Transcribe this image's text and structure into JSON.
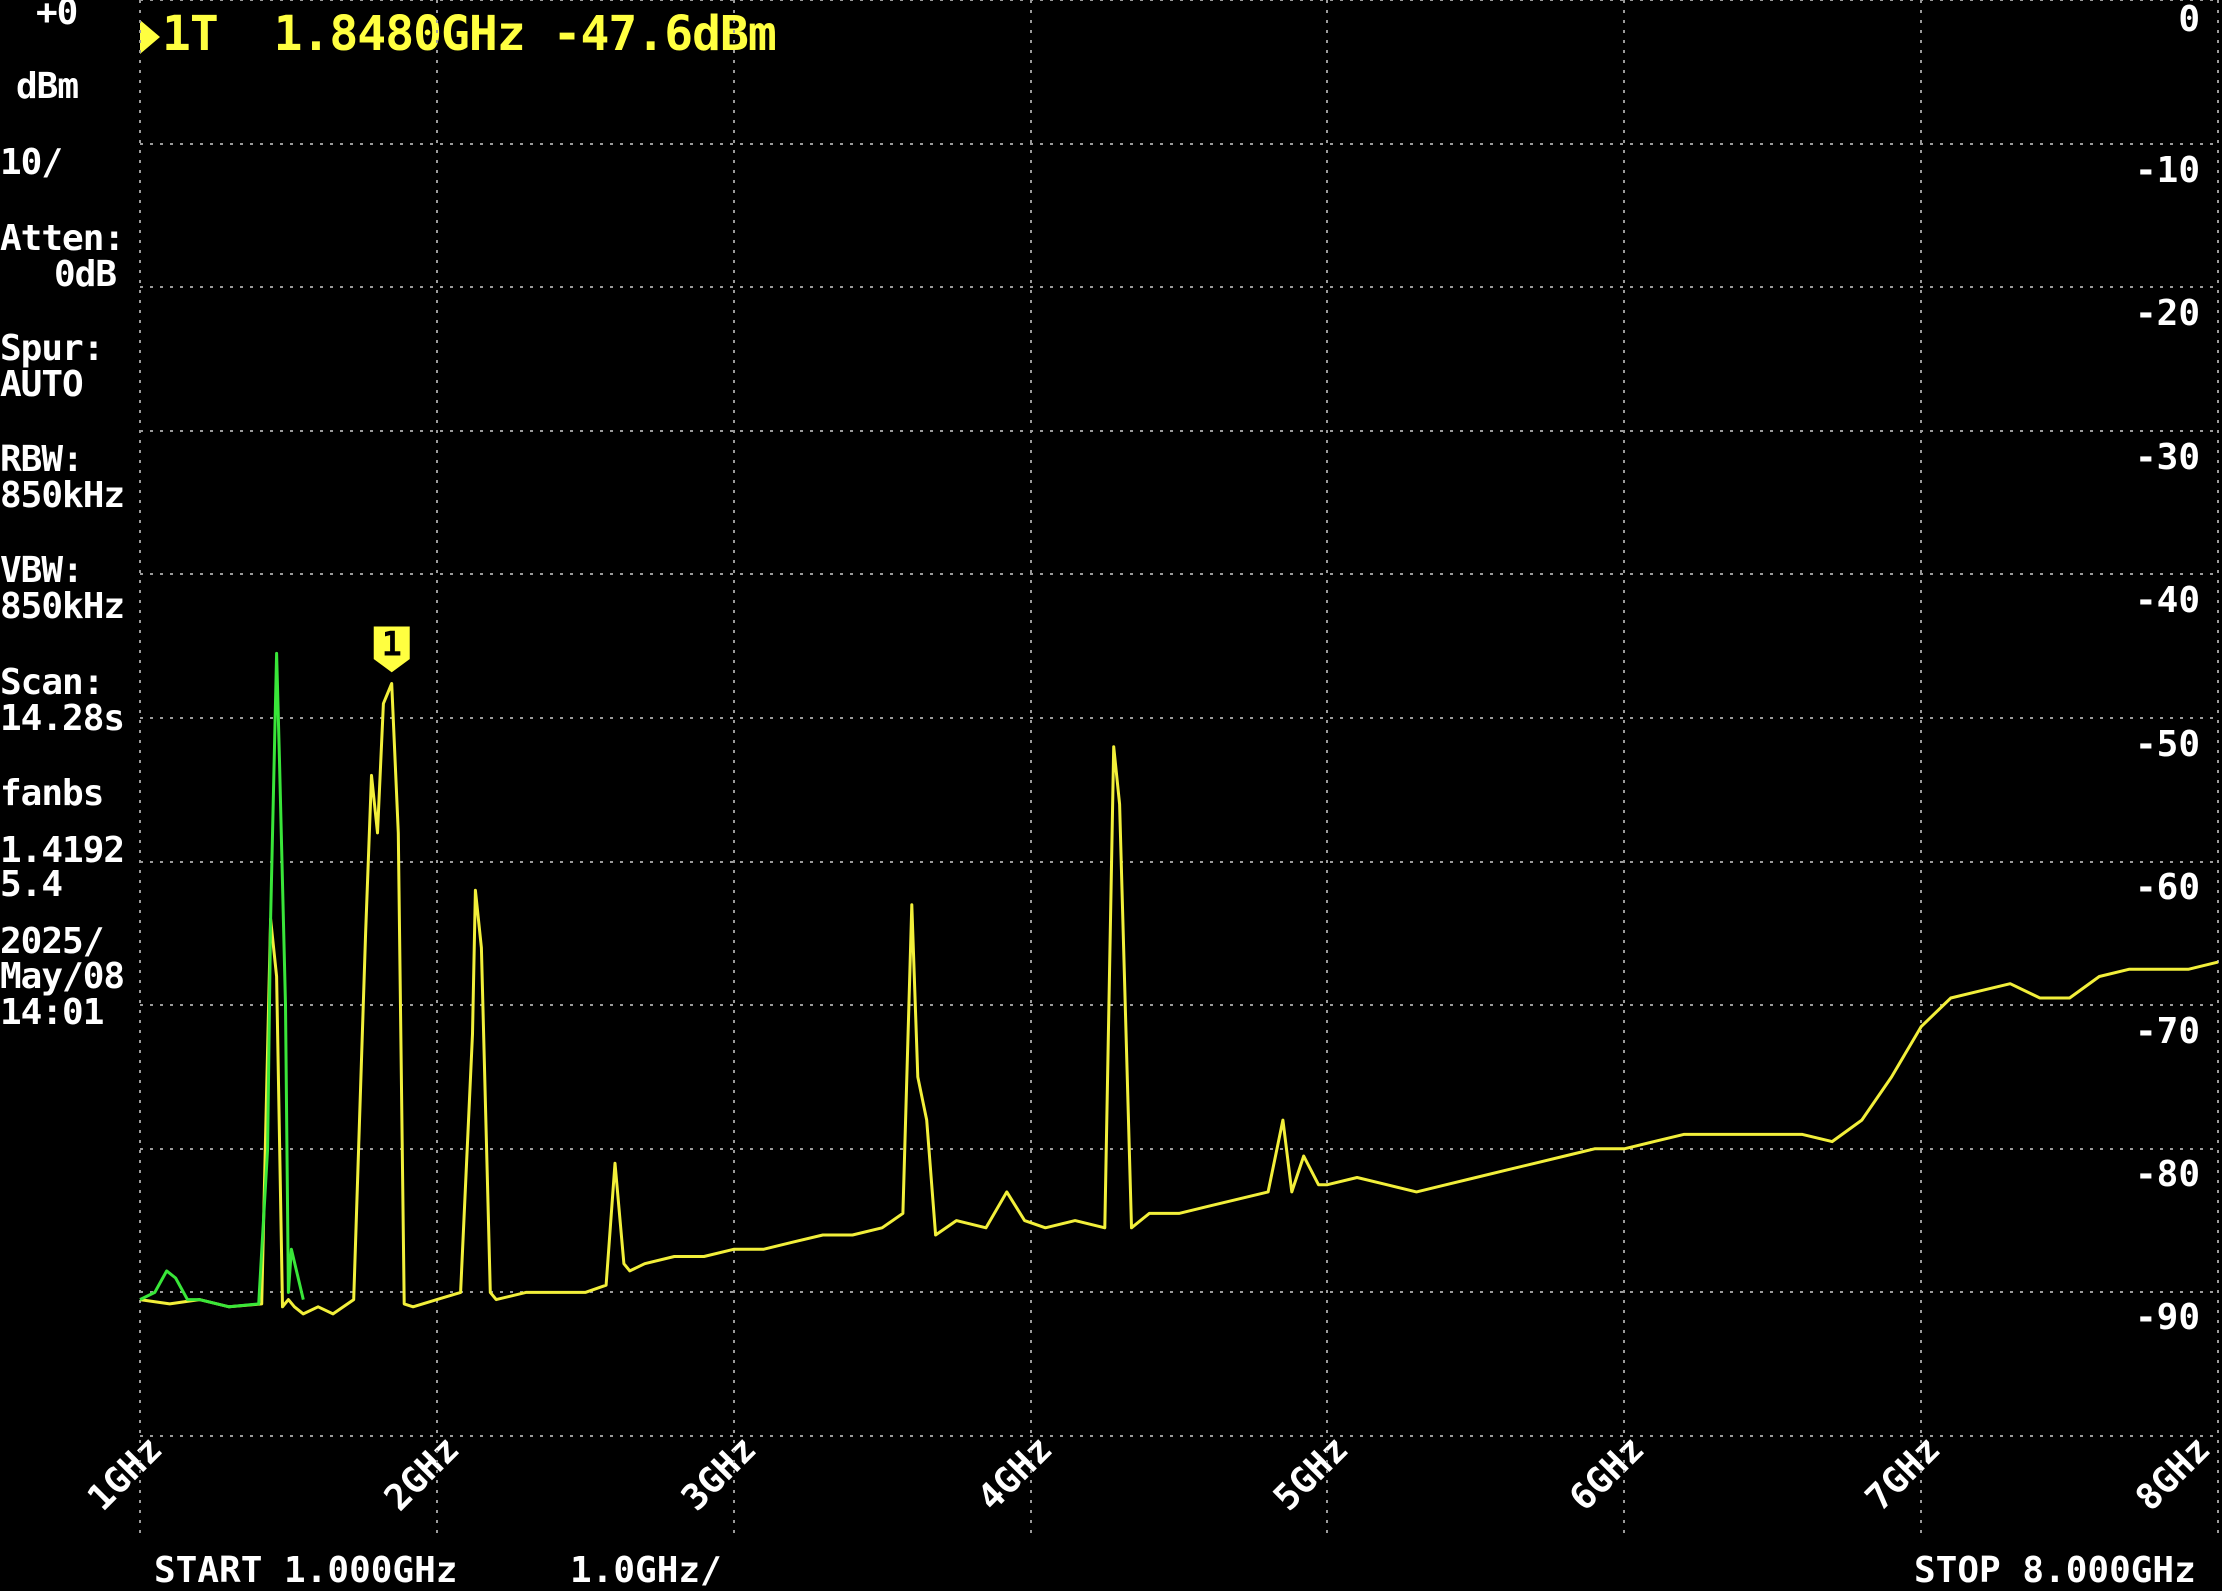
{
  "header": {
    "marker_label": "1T",
    "marker_frequency": "1.8480GHz",
    "marker_level": "-47.6dBm"
  },
  "sidebar": {
    "ref_level": "+0",
    "ref_unit": "dBm",
    "scale": "10/",
    "atten_label": "Atten:",
    "atten_value": "0dB",
    "spur_label": "Spur:",
    "spur_value": "AUTO",
    "rbw_label": "RBW:",
    "rbw_value": "850kHz",
    "vbw_label": "VBW:",
    "vbw_value": "850kHz",
    "scan_label": "Scan:",
    "scan_value": "14.28s",
    "device_id": "fanbs",
    "version_line1": "1.4192",
    "version_line2": "5.4",
    "date_line1": "2025/",
    "date_line2": "May/08",
    "time": "14:01"
  },
  "footer": {
    "start": "START 1.000GHz",
    "span_per_div": "1.0GHz/",
    "stop": "STOP 8.000GHz"
  },
  "marker": {
    "number": "1",
    "frequency_ghz": 1.848,
    "level_dbm": -47.6
  },
  "colors": {
    "trace_yellow": "#f2ef3a",
    "trace_green": "#39e639",
    "grid": "#9a9a9a",
    "marker": "#ffff40"
  },
  "chart_data": {
    "type": "line",
    "y_ticks": [
      "0",
      "-10",
      "-20",
      "-30",
      "-40",
      "-50",
      "-60",
      "-70",
      "-80",
      "-90"
    ],
    "x_ticks": [
      "1GHz",
      "2GHz",
      "3GHz",
      "4GHz",
      "5GHz",
      "6GHz",
      "7GHz",
      "8GHz"
    ],
    "xlim": [
      1.0,
      8.0
    ],
    "ylim": [
      -100,
      0
    ],
    "grid": true,
    "series": [
      {
        "color": "yellow",
        "x": [
          1.0,
          1.1,
          1.2,
          1.3,
          1.41,
          1.44,
          1.46,
          1.48,
          1.5,
          1.52,
          1.55,
          1.6,
          1.65,
          1.72,
          1.76,
          1.78,
          1.8,
          1.82,
          1.848,
          1.87,
          1.89,
          1.92,
          2.0,
          2.08,
          2.12,
          2.13,
          2.15,
          2.18,
          2.2,
          2.3,
          2.4,
          2.5,
          2.57,
          2.6,
          2.63,
          2.65,
          2.7,
          2.8,
          2.9,
          3.0,
          3.1,
          3.2,
          3.3,
          3.4,
          3.5,
          3.57,
          3.6,
          3.62,
          3.65,
          3.68,
          3.75,
          3.85,
          3.92,
          3.98,
          4.05,
          4.15,
          4.25,
          4.28,
          4.3,
          4.34,
          4.4,
          4.5,
          4.6,
          4.7,
          4.8,
          4.85,
          4.88,
          4.92,
          4.97,
          5.0,
          5.1,
          5.2,
          5.3,
          5.4,
          5.5,
          5.6,
          5.7,
          5.8,
          5.9,
          6.0,
          6.1,
          6.2,
          6.3,
          6.4,
          6.5,
          6.6,
          6.7,
          6.8,
          6.9,
          7.0,
          7.1,
          7.2,
          7.3,
          7.4,
          7.5,
          7.6,
          7.7,
          7.8,
          7.9,
          8.0
        ],
        "y": [
          -90.5,
          -90.8,
          -90.5,
          -91.0,
          -90.8,
          -64.0,
          -68.0,
          -91.0,
          -90.5,
          -91.0,
          -91.5,
          -91.0,
          -91.5,
          -90.5,
          -65.0,
          -54.0,
          -58.0,
          -49.0,
          -47.6,
          -58.0,
          -90.8,
          -91.0,
          -90.5,
          -90.0,
          -72.0,
          -62.0,
          -66.0,
          -90.0,
          -90.5,
          -90.0,
          -90.0,
          -90.0,
          -89.5,
          -81.0,
          -88.0,
          -88.5,
          -88.0,
          -87.5,
          -87.5,
          -87.0,
          -87.0,
          -86.5,
          -86.0,
          -86.0,
          -85.5,
          -84.5,
          -63.0,
          -75.0,
          -78.0,
          -86.0,
          -85.0,
          -85.5,
          -83.0,
          -85.0,
          -85.5,
          -85.0,
          -85.5,
          -52.0,
          -56.0,
          -85.5,
          -84.5,
          -84.5,
          -84.0,
          -83.5,
          -83.0,
          -78.0,
          -83.0,
          -80.5,
          -82.5,
          -82.5,
          -82.0,
          -82.5,
          -83.0,
          -82.5,
          -82.0,
          -81.5,
          -81.0,
          -80.5,
          -80.0,
          -80.0,
          -79.5,
          -79.0,
          -79.0,
          -79.0,
          -79.0,
          -79.0,
          -79.5,
          -78.0,
          -75.0,
          -71.5,
          -69.5,
          -69.0,
          -68.5,
          -69.5,
          -69.5,
          -68.0,
          -67.5,
          -67.5,
          -67.5,
          -67.0
        ]
      },
      {
        "color": "green",
        "x": [
          1.0,
          1.05,
          1.09,
          1.12,
          1.16,
          1.2,
          1.3,
          1.4,
          1.43,
          1.44,
          1.46,
          1.47,
          1.49,
          1.5,
          1.51,
          1.55
        ],
        "y": [
          -90.5,
          -90.0,
          -88.5,
          -89.0,
          -90.5,
          -90.5,
          -91.0,
          -90.8,
          -80.0,
          -64.0,
          -45.5,
          -53.0,
          -70.0,
          -90.0,
          -87.0,
          -90.5
        ]
      }
    ]
  }
}
